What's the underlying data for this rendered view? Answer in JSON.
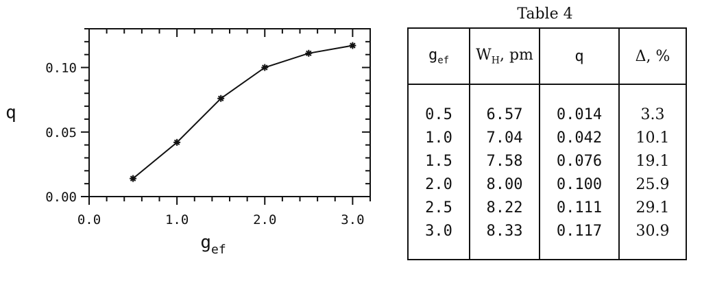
{
  "chart_data": {
    "type": "line",
    "xlabel_main": "g",
    "xlabel_sub": "ef",
    "ylabel": "q",
    "xlim": [
      0,
      3.2
    ],
    "ylim": [
      0,
      0.13
    ],
    "x_ticks": [
      "0.0",
      "1.0",
      "2.0",
      "3.0"
    ],
    "x_tick_values": [
      0,
      1,
      2,
      3
    ],
    "y_ticks": [
      "0.00",
      "0.05",
      "0.10"
    ],
    "y_tick_values": [
      0,
      0.05,
      0.1
    ],
    "marker": "asterisk",
    "grid": false,
    "series": [
      {
        "x": [
          0.5,
          1.0,
          1.5,
          2.0,
          2.5,
          3.0
        ],
        "y": [
          0.014,
          0.042,
          0.076,
          0.1,
          0.111,
          0.117
        ]
      }
    ]
  },
  "table": {
    "caption": "Table 4",
    "headers": {
      "g_main": "g",
      "g_sub": "ef",
      "w_main": "W",
      "w_sub": "H",
      "w_rest": ", pm",
      "q": "q",
      "delta": "Δ, %"
    },
    "rows": [
      [
        "0.5",
        "6.57",
        "0.014",
        "3.3"
      ],
      [
        "1.0",
        "7.04",
        "0.042",
        "10.1"
      ],
      [
        "1.5",
        "7.58",
        "0.076",
        "19.1"
      ],
      [
        "2.0",
        "8.00",
        "0.100",
        "25.9"
      ],
      [
        "2.5",
        "8.22",
        "0.111",
        "29.1"
      ],
      [
        "3.0",
        "8.33",
        "0.117",
        "30.9"
      ]
    ]
  }
}
